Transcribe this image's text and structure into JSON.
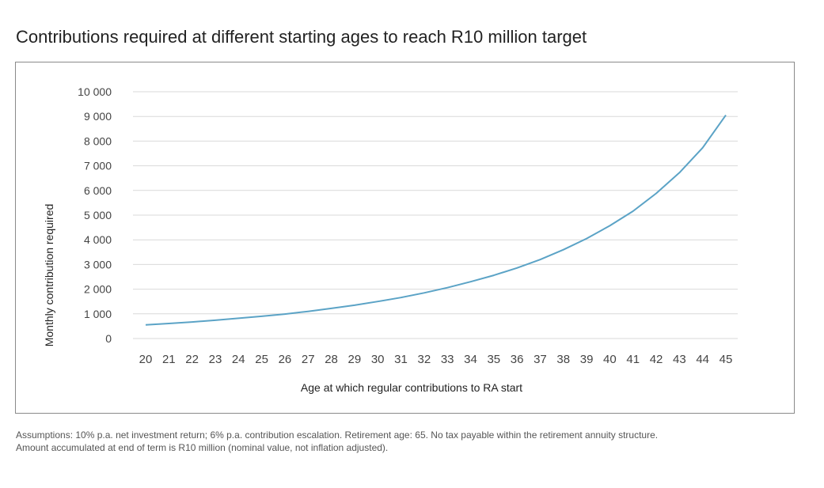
{
  "chart_data": {
    "type": "line",
    "title": "Contributions required at different starting ages to reach R10 million target",
    "xlabel": "Age at which regular contributions to RA start",
    "ylabel": "Monthly contribution required",
    "x": [
      20,
      21,
      22,
      23,
      24,
      25,
      26,
      27,
      28,
      29,
      30,
      31,
      32,
      33,
      34,
      35,
      36,
      37,
      38,
      39,
      40,
      41,
      42,
      43,
      44,
      45
    ],
    "series": [
      {
        "name": "",
        "color": "#5ba3c6",
        "values": [
          550,
          610,
          670,
          740,
          820,
          900,
          990,
          1100,
          1220,
          1350,
          1500,
          1660,
          1850,
          2060,
          2300,
          2560,
          2860,
          3200,
          3600,
          4050,
          4570,
          5160,
          5880,
          6720,
          7730,
          9050
        ]
      }
    ],
    "ylim": [
      0,
      10000
    ],
    "y_ticks": [
      0,
      1000,
      2000,
      3000,
      4000,
      5000,
      6000,
      7000,
      8000,
      9000,
      10000
    ],
    "y_tick_labels": [
      "0",
      "1 000",
      "2 000",
      "3 000",
      "4 000",
      "5 000",
      "6 000",
      "7 000",
      "8 000",
      "9 000",
      "10 000"
    ],
    "grid": true,
    "legend": "none"
  },
  "footnote": {
    "line1": "Assumptions: 10% p.a. net investment return; 6% p.a. contribution escalation. Retirement age: 65. No tax payable within the retirement annuity structure.",
    "line2": "Amount accumulated at end of term is R10 million (nominal value, not inflation adjusted)."
  }
}
